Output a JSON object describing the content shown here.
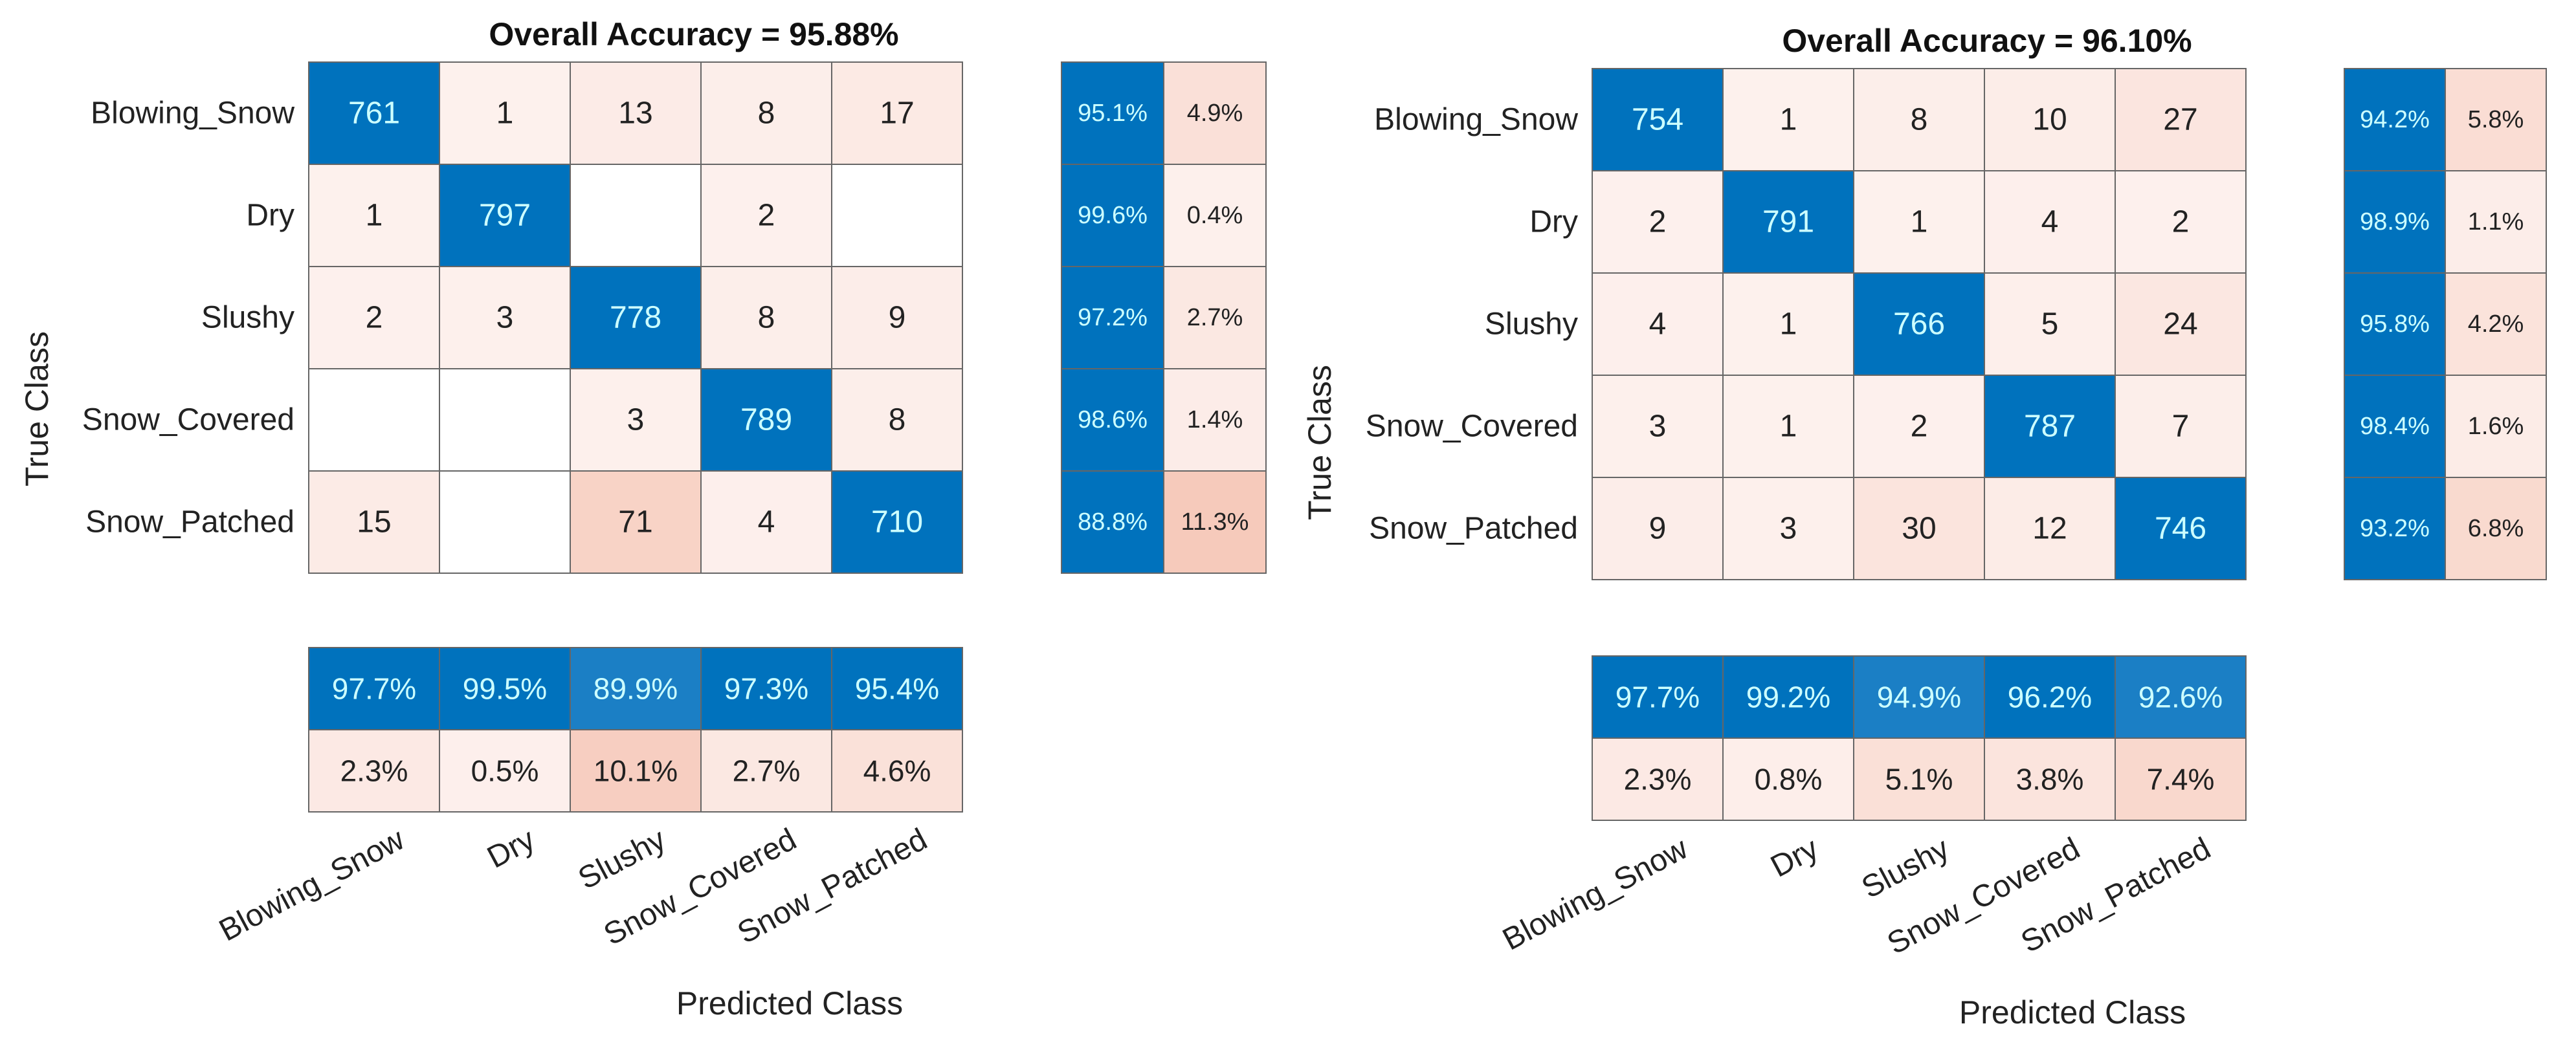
{
  "chart_data": [
    {
      "type": "heatmap",
      "title": "Overall Accuracy = 95.88%",
      "xlabel": "Predicted Class",
      "ylabel": "True Class",
      "classes": [
        "Blowing_Snow",
        "Dry",
        "Slushy",
        "Snow_Covered",
        "Snow_Patched"
      ],
      "matrix": [
        [
          761,
          1,
          13,
          8,
          17
        ],
        [
          1,
          797,
          null,
          2,
          null
        ],
        [
          2,
          3,
          778,
          8,
          9
        ],
        [
          null,
          null,
          3,
          789,
          8
        ],
        [
          15,
          null,
          71,
          4,
          710
        ]
      ],
      "row_summary": {
        "correct": [
          "95.1%",
          "99.6%",
          "97.2%",
          "98.6%",
          "88.8%"
        ],
        "incorrect": [
          "4.9%",
          "0.4%",
          "2.7%",
          "1.4%",
          "11.3%"
        ]
      },
      "column_summary": {
        "correct": [
          "97.7%",
          "99.5%",
          "89.9%",
          "97.3%",
          "95.4%"
        ],
        "incorrect": [
          "2.3%",
          "0.5%",
          "10.1%",
          "2.7%",
          "4.6%"
        ]
      }
    },
    {
      "type": "heatmap",
      "title": "Overall Accuracy = 96.10%",
      "xlabel": "Predicted Class",
      "ylabel": "True Class",
      "classes": [
        "Blowing_Snow",
        "Dry",
        "Slushy",
        "Snow_Covered",
        "Snow_Patched"
      ],
      "matrix": [
        [
          754,
          1,
          8,
          10,
          27
        ],
        [
          2,
          791,
          1,
          4,
          2
        ],
        [
          4,
          1,
          766,
          5,
          24
        ],
        [
          3,
          1,
          2,
          787,
          7
        ],
        [
          9,
          3,
          30,
          12,
          746
        ]
      ],
      "row_summary": {
        "correct": [
          "94.2%",
          "98.9%",
          "95.8%",
          "98.4%",
          "93.2%"
        ],
        "incorrect": [
          "5.8%",
          "1.1%",
          "4.2%",
          "1.6%",
          "6.8%"
        ]
      },
      "column_summary": {
        "correct": [
          "97.7%",
          "99.2%",
          "94.9%",
          "96.2%",
          "92.6%"
        ],
        "incorrect": [
          "2.3%",
          "0.8%",
          "5.1%",
          "3.8%",
          "7.4%"
        ]
      }
    }
  ],
  "colors": {
    "diagonal": "#0072bd",
    "diagonal_text": "#ccffff",
    "offdiag_light": "#fdf1ee",
    "offdiag_dark": "#f6c8b8",
    "text": "#222222",
    "grid": "#666666"
  }
}
